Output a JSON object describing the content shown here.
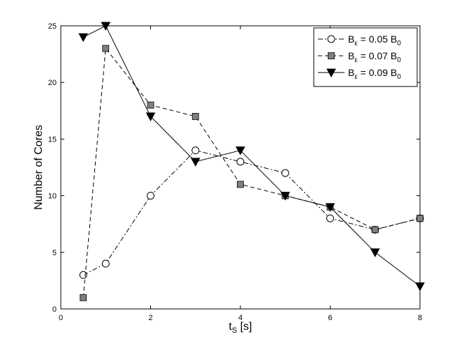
{
  "chart_data": {
    "type": "line",
    "xlabel_main": "t",
    "xlabel_sub": "S",
    "xlabel_unit": " [s]",
    "ylabel": "Number of Cores",
    "xlim": [
      0,
      8
    ],
    "ylim": [
      0,
      25
    ],
    "xticks": [
      0,
      2,
      4,
      6,
      8
    ],
    "yticks": [
      0,
      5,
      10,
      15,
      20,
      25
    ],
    "grid": false,
    "legend_position": "top-right",
    "series": [
      {
        "name_prefix": "B",
        "name_sub": "ε",
        "name_value": " = 0.05 B",
        "name_suffix_sub": "0",
        "marker": "circle",
        "line_style": "dash-dot",
        "marker_color": "#ffffff",
        "x": [
          0.5,
          1,
          2,
          3,
          4,
          5,
          6,
          7,
          8
        ],
        "y": [
          3,
          4,
          10,
          14,
          13,
          12,
          8,
          7,
          8
        ]
      },
      {
        "name_prefix": "B",
        "name_sub": "ε",
        "name_value": " = 0.07 B",
        "name_suffix_sub": "0",
        "marker": "square",
        "line_style": "dashed",
        "marker_color": "#7f7f7f",
        "x": [
          0.5,
          1,
          2,
          3,
          4,
          5,
          6,
          7,
          8
        ],
        "y": [
          1,
          23,
          18,
          17,
          11,
          10,
          9,
          7,
          8
        ]
      },
      {
        "name_prefix": "B",
        "name_sub": "ε",
        "name_value": " = 0.09 B",
        "name_suffix_sub": "0",
        "marker": "triangle-down",
        "line_style": "solid",
        "marker_color": "#000000",
        "x": [
          0.5,
          1,
          2,
          3,
          4,
          5,
          6,
          7,
          8
        ],
        "y": [
          24,
          25,
          17,
          13,
          14,
          10,
          9,
          5,
          2
        ]
      }
    ]
  }
}
